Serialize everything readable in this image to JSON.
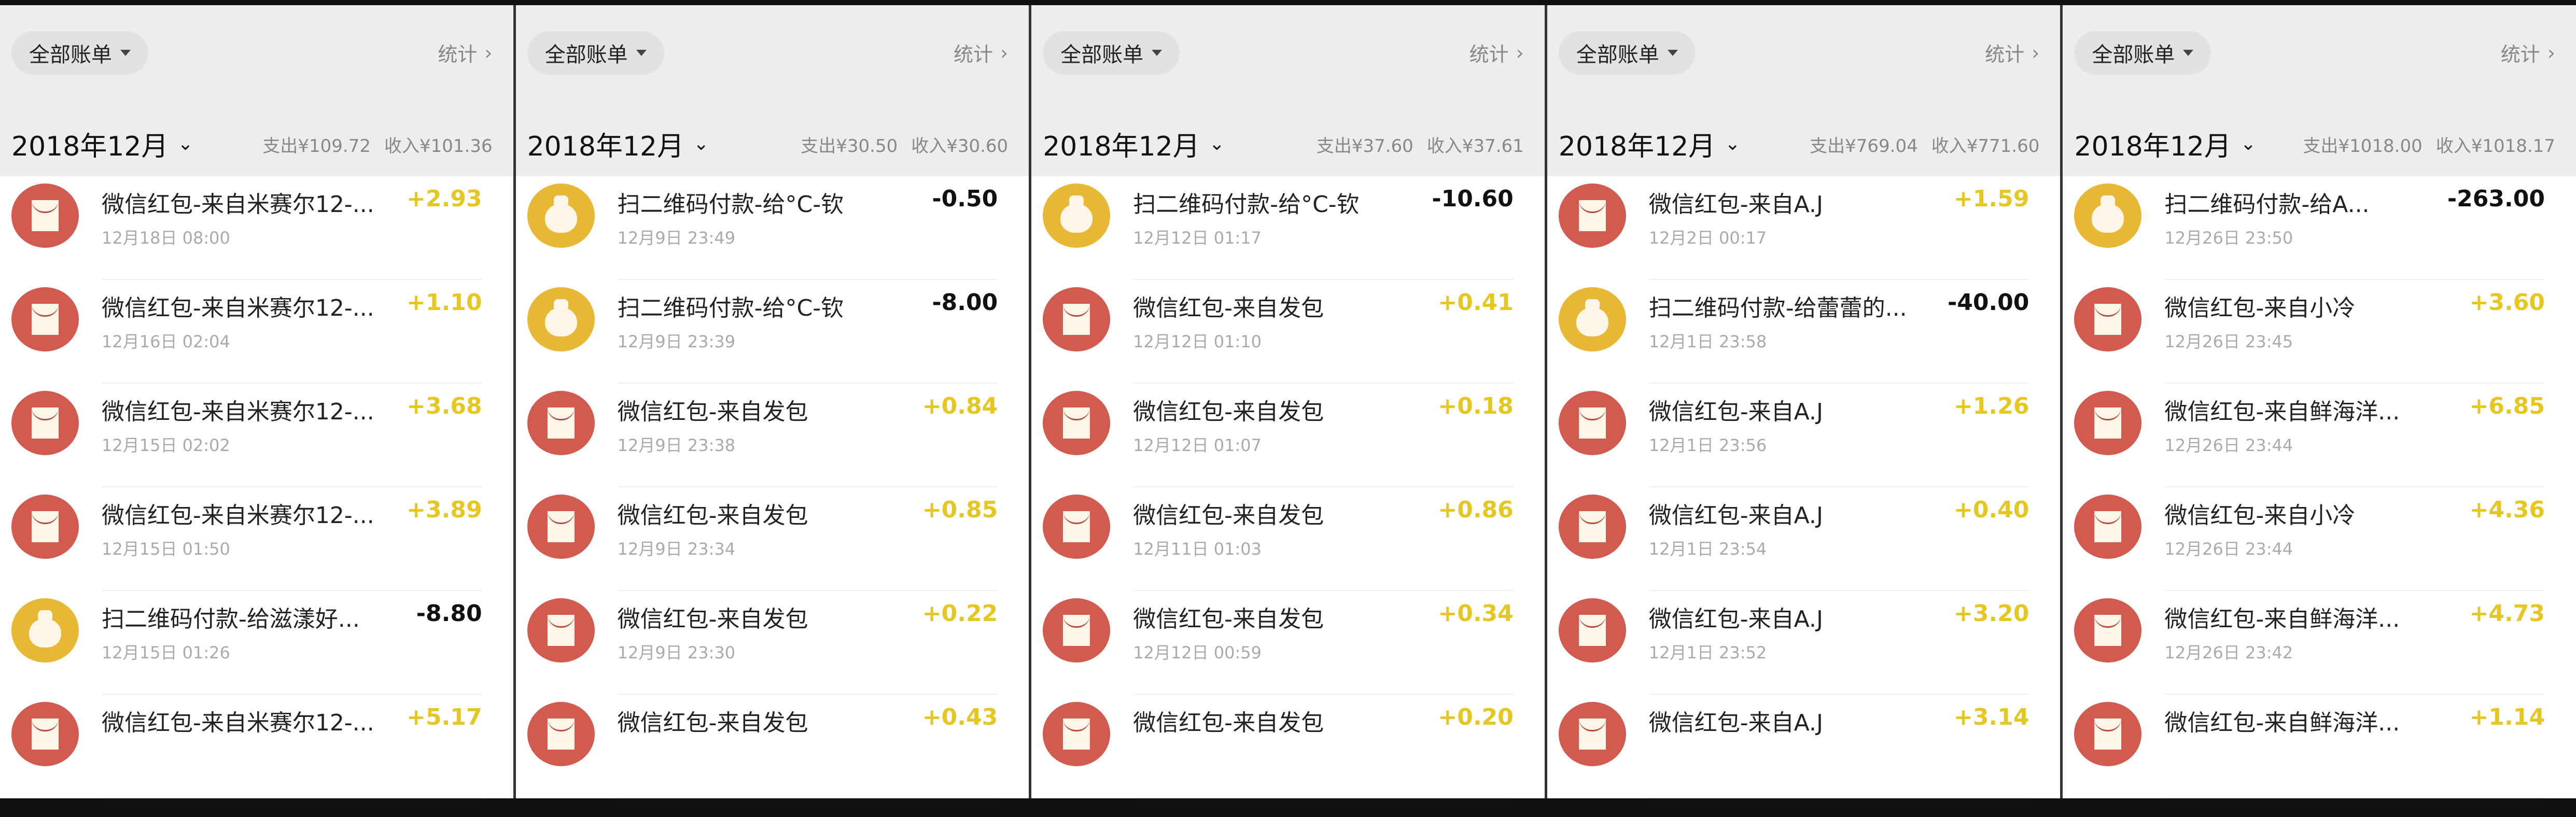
{
  "colors": {
    "income": "#e6c620",
    "expense": "#111111",
    "red_icon": "#d25a4f",
    "yellow_icon": "#e8b734"
  },
  "panels": [
    {
      "filter": "全部账单",
      "stat": "统计",
      "month": "2018年12月",
      "expense": "支出¥109.72",
      "income": "收入¥101.36",
      "rows": [
        {
          "icon": "red-envelope-icon",
          "title": "微信红包-来自米赛尔12-...",
          "date": "12月18日 08:00",
          "amount": "+2.93",
          "type": "in"
        },
        {
          "icon": "red-envelope-icon",
          "title": "微信红包-来自米赛尔12-...",
          "date": "12月16日 02:04",
          "amount": "+1.10",
          "type": "in"
        },
        {
          "icon": "red-envelope-icon",
          "title": "微信红包-来自米赛尔12-...",
          "date": "12月15日 02:02",
          "amount": "+3.68",
          "type": "in"
        },
        {
          "icon": "red-envelope-icon",
          "title": "微信红包-来自米赛尔12-...",
          "date": "12月15日 01:50",
          "amount": "+3.89",
          "type": "in"
        },
        {
          "icon": "money-bag-icon",
          "title": "扫二维码付款-给滋漾好...",
          "date": "12月15日 01:26",
          "amount": "-8.80",
          "type": "out"
        },
        {
          "icon": "red-envelope-icon",
          "title": "微信红包-来自米赛尔12-...",
          "date": "",
          "amount": "+5.17",
          "type": "in"
        }
      ]
    },
    {
      "filter": "全部账单",
      "stat": "统计",
      "month": "2018年12月",
      "expense": "支出¥30.50",
      "income": "收入¥30.60",
      "rows": [
        {
          "icon": "money-bag-icon",
          "title": "扫二维码付款-给°C-钦",
          "date": "12月9日 23:49",
          "amount": "-0.50",
          "type": "out"
        },
        {
          "icon": "money-bag-icon",
          "title": "扫二维码付款-给°C-钦",
          "date": "12月9日 23:39",
          "amount": "-8.00",
          "type": "out"
        },
        {
          "icon": "red-envelope-icon",
          "title": "微信红包-来自发包",
          "date": "12月9日 23:38",
          "amount": "+0.84",
          "type": "in"
        },
        {
          "icon": "red-envelope-icon",
          "title": "微信红包-来自发包",
          "date": "12月9日 23:34",
          "amount": "+0.85",
          "type": "in"
        },
        {
          "icon": "red-envelope-icon",
          "title": "微信红包-来自发包",
          "date": "12月9日 23:30",
          "amount": "+0.22",
          "type": "in"
        },
        {
          "icon": "red-envelope-icon",
          "title": "微信红包-来自发包",
          "date": "",
          "amount": "+0.43",
          "type": "in"
        }
      ]
    },
    {
      "filter": "全部账单",
      "stat": "统计",
      "month": "2018年12月",
      "expense": "支出¥37.60",
      "income": "收入¥37.61",
      "rows": [
        {
          "icon": "money-bag-icon",
          "title": "扫二维码付款-给°C-钦",
          "date": "12月12日 01:17",
          "amount": "-10.60",
          "type": "out"
        },
        {
          "icon": "red-envelope-icon",
          "title": "微信红包-来自发包",
          "date": "12月12日 01:10",
          "amount": "+0.41",
          "type": "in"
        },
        {
          "icon": "red-envelope-icon",
          "title": "微信红包-来自发包",
          "date": "12月12日 01:07",
          "amount": "+0.18",
          "type": "in"
        },
        {
          "icon": "red-envelope-icon",
          "title": "微信红包-来自发包",
          "date": "12月11日 01:03",
          "amount": "+0.86",
          "type": "in"
        },
        {
          "icon": "red-envelope-icon",
          "title": "微信红包-来自发包",
          "date": "12月12日 00:59",
          "amount": "+0.34",
          "type": "in"
        },
        {
          "icon": "red-envelope-icon",
          "title": "微信红包-来自发包",
          "date": "",
          "amount": "+0.20",
          "type": "in"
        }
      ]
    },
    {
      "filter": "全部账单",
      "stat": "统计",
      "month": "2018年12月",
      "expense": "支出¥769.04",
      "income": "收入¥771.60",
      "rows": [
        {
          "icon": "red-envelope-icon",
          "title": "微信红包-来自A.J",
          "date": "12月2日 00:17",
          "amount": "+1.59",
          "type": "in"
        },
        {
          "icon": "money-bag-icon",
          "title": "扫二维码付款-给蕾蕾的...",
          "date": "12月1日 23:58",
          "amount": "-40.00",
          "type": "out"
        },
        {
          "icon": "red-envelope-icon",
          "title": "微信红包-来自A.J",
          "date": "12月1日 23:56",
          "amount": "+1.26",
          "type": "in"
        },
        {
          "icon": "red-envelope-icon",
          "title": "微信红包-来自A.J",
          "date": "12月1日 23:54",
          "amount": "+0.40",
          "type": "in"
        },
        {
          "icon": "red-envelope-icon",
          "title": "微信红包-来自A.J",
          "date": "12月1日 23:52",
          "amount": "+3.20",
          "type": "in"
        },
        {
          "icon": "red-envelope-icon",
          "title": "微信红包-来自A.J",
          "date": "",
          "amount": "+3.14",
          "type": "in"
        }
      ]
    },
    {
      "filter": "全部账单",
      "stat": "统计",
      "month": "2018年12月",
      "expense": "支出¥1018.00",
      "income": "收入¥1018.17",
      "rows": [
        {
          "icon": "money-bag-icon",
          "title": "扫二维码付款-给A...",
          "date": "12月26日 23:50",
          "amount": "-263.00",
          "type": "out"
        },
        {
          "icon": "red-envelope-icon",
          "title": "微信红包-来自小冷",
          "date": "12月26日 23:45",
          "amount": "+3.60",
          "type": "in"
        },
        {
          "icon": "red-envelope-icon",
          "title": "微信红包-来自鲜海洋...",
          "date": "12月26日 23:44",
          "amount": "+6.85",
          "type": "in"
        },
        {
          "icon": "red-envelope-icon",
          "title": "微信红包-来自小冷",
          "date": "12月26日 23:44",
          "amount": "+4.36",
          "type": "in"
        },
        {
          "icon": "red-envelope-icon",
          "title": "微信红包-来自鲜海洋...",
          "date": "12月26日 23:42",
          "amount": "+4.73",
          "type": "in"
        },
        {
          "icon": "red-envelope-icon",
          "title": "微信红包-来自鲜海洋...",
          "date": "",
          "amount": "+1.14",
          "type": "in"
        }
      ]
    }
  ]
}
